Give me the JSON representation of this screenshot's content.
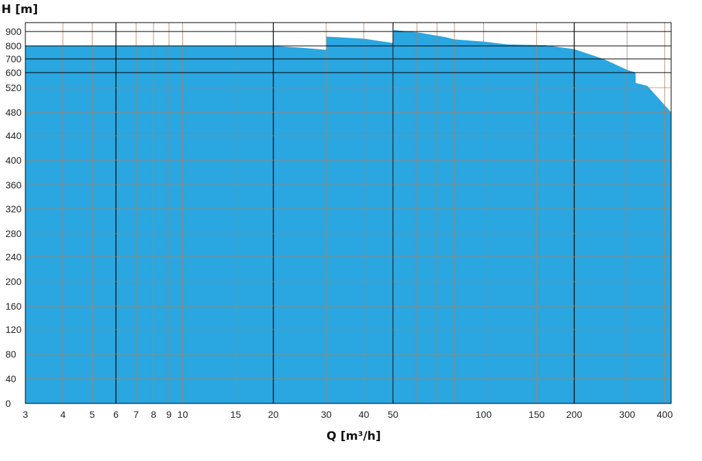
{
  "chart_data": {
    "type": "area",
    "xlabel": "Q [m³/h]",
    "ylabel": "H [m]",
    "x_scale": "log",
    "xlim": [
      3,
      420
    ],
    "fill_color": "#2aa6e0",
    "grid_color_minor": "#b08060",
    "grid_color_major": "#000000",
    "grid": true,
    "x_ticks": [
      3,
      4,
      5,
      6,
      7,
      8,
      9,
      10,
      15,
      20,
      30,
      40,
      50,
      100,
      150,
      200,
      300,
      400
    ],
    "x_tick_labels": [
      "3",
      "4",
      "5",
      "6",
      "7",
      "8",
      "9",
      "10",
      "15",
      "20",
      "30",
      "40",
      "50",
      "100",
      "150",
      "200",
      "300",
      "400"
    ],
    "x_extra_gridlines": [
      60,
      70,
      80
    ],
    "y_ticks": [
      0,
      40,
      80,
      120,
      160,
      200,
      240,
      280,
      320,
      360,
      400,
      440,
      480,
      520,
      600,
      700,
      800,
      900
    ],
    "y_tick_labels": [
      "0",
      "40",
      "80",
      "120",
      "160",
      "200",
      "240",
      "280",
      "320",
      "360",
      "400",
      "440",
      "480",
      "520",
      "600",
      "700",
      "800",
      "900"
    ],
    "x_major_gridlines": [
      6,
      20,
      50,
      200
    ],
    "series": [
      {
        "points": [
          [
            3,
            800
          ],
          [
            20,
            800
          ],
          [
            25,
            785
          ],
          [
            30,
            770
          ],
          [
            30,
            865
          ],
          [
            40,
            850
          ],
          [
            50,
            820
          ],
          [
            50,
            910
          ],
          [
            60,
            895
          ],
          [
            75,
            860
          ],
          [
            80,
            845
          ],
          [
            100,
            830
          ],
          [
            120,
            810
          ],
          [
            160,
            805
          ],
          [
            200,
            775
          ],
          [
            250,
            700
          ],
          [
            300,
            620
          ],
          [
            320,
            600
          ],
          [
            320,
            545
          ],
          [
            350,
            530
          ],
          [
            420,
            480
          ]
        ]
      }
    ]
  }
}
